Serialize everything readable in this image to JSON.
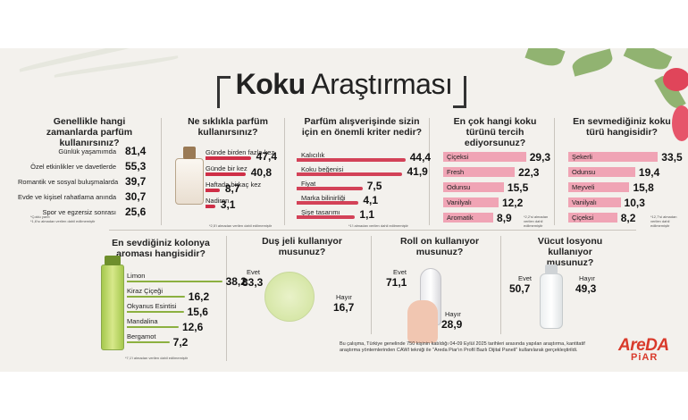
{
  "title_bold": "Koku",
  "title_light": "Araştırması",
  "q1": {
    "question": "Genellikle hangi zamanlarda parfüm kullanırsınız?",
    "note": "*Çoklu yanıt\n*1,6'sı almadan verilen dahil edilmemiştir",
    "items": [
      {
        "label": "Günlük yaşamımda",
        "value": "81,4"
      },
      {
        "label": "Özel etkinlikler ve davetlerde",
        "value": "55,3"
      },
      {
        "label": "Romantik ve sosyal buluşmalarda",
        "value": "39,7"
      },
      {
        "label": "Evde ve kişisel rahatlama anında",
        "value": "30,7"
      },
      {
        "label": "Spor ve egzersiz sonrası",
        "value": "25,6"
      }
    ]
  },
  "q2": {
    "question": "Ne sıklıkla parfüm kullanırsınız?",
    "note": "*2,5'i almadan verilen dahil edilmemiştir",
    "items": [
      {
        "label": "Günde birden fazla kez",
        "value": "47,4"
      },
      {
        "label": "Günde bir kez",
        "value": "40,8"
      },
      {
        "label": "Haftada birkaç kez",
        "value": "8,7"
      },
      {
        "label": "Nadiren",
        "value": "3,1"
      }
    ]
  },
  "q3": {
    "question": "Parfüm alışverişinde sizin için en önemli kriter nedir?",
    "note": "*1'i almadan verilen dahil edilmemiştir",
    "items": [
      {
        "label": "Kalıcılık",
        "value": "44,4"
      },
      {
        "label": "Koku beğenisi",
        "value": "41,9"
      },
      {
        "label": "Fiyat",
        "value": "7,5"
      },
      {
        "label": "Marka bilinirliği",
        "value": "4,1"
      },
      {
        "label": "Şişe tasarımı",
        "value": "1,1"
      }
    ]
  },
  "q4": {
    "question": "En çok hangi koku türünü tercih ediyorsunuz?",
    "note": "*2,2'si almadan verilen dahil edilmemiştir",
    "items": [
      {
        "label": "Çiçeksi",
        "value": "29,3"
      },
      {
        "label": "Fresh",
        "value": "22,3"
      },
      {
        "label": "Odunsu",
        "value": "15,5"
      },
      {
        "label": "Vanilyalı",
        "value": "12,2"
      },
      {
        "label": "Aromatik",
        "value": "8,9"
      }
    ]
  },
  "q5": {
    "question": "En sevmediğiniz koku türü hangisidir?",
    "note": "*12,7'si almadan verilen dahil edilmemiştir",
    "items": [
      {
        "label": "Şekerli",
        "value": "33,5"
      },
      {
        "label": "Odunsu",
        "value": "19,4"
      },
      {
        "label": "Meyveli",
        "value": "15,8"
      },
      {
        "label": "Vanilyalı",
        "value": "10,3"
      },
      {
        "label": "Çiçeksi",
        "value": "8,2"
      }
    ]
  },
  "q6": {
    "question": "En sevdiğiniz kolonya aroması hangisidir?",
    "note": "*7,1'i almadan verilen dahil edilmemiştir",
    "items": [
      {
        "label": "Limon",
        "value": "38,2"
      },
      {
        "label": "Kiraz Çiçeği",
        "value": "16,2"
      },
      {
        "label": "Okyanus Esintisi",
        "value": "15,6"
      },
      {
        "label": "Mandalina",
        "value": "12,6"
      },
      {
        "label": "Bergamot",
        "value": "7,2"
      }
    ]
  },
  "q7": {
    "question": "Duş jeli kullanıyor musunuz?",
    "yes_label": "Evet",
    "yes_value": "83,3",
    "no_label": "Hayır",
    "no_value": "16,7"
  },
  "q8": {
    "question": "Roll on kullanıyor musunuz?",
    "yes_label": "Evet",
    "yes_value": "71,1",
    "no_label": "Hayır",
    "no_value": "28,9"
  },
  "q9": {
    "question": "Vücut losyonu kullanıyor musunuz?",
    "yes_label": "Evet",
    "yes_value": "50,7",
    "no_label": "Hayır",
    "no_value": "49,3"
  },
  "footer": "Bu çalışma, Türkiye genelinde 750 kişinin katıldığı 04-09 Eylül 2025 tarihleri arasında yapılan araştırma, kantitatif araştırma yöntemlerinden CAWI tekniği ile \"Areda Piar'ın Profil Bazlı Dijital Paneli\" kullanılarak gerçekleştirildi.",
  "logo_top": "AreDA",
  "logo_bottom": "PiAR",
  "colors": {
    "red": "#cf2f47",
    "pink": "#f0a4b5",
    "green": "#8cb040",
    "background": "#f3f1ed"
  },
  "chart_data": [
    {
      "type": "bar",
      "title": "Genellikle hangi zamanlarda parfüm kullanırsınız?",
      "categories": [
        "Günlük yaşamımda",
        "Özel etkinlikler ve davetlerde",
        "Romantik ve sosyal buluşmalarda",
        "Evde ve kişisel rahatlama anında",
        "Spor ve egzersiz sonrası"
      ],
      "values": [
        81.4,
        55.3,
        39.7,
        30.7,
        25.6
      ]
    },
    {
      "type": "bar",
      "title": "Ne sıklıkla parfüm kullanırsınız?",
      "categories": [
        "Günde birden fazla kez",
        "Günde bir kez",
        "Haftada birkaç kez",
        "Nadiren"
      ],
      "values": [
        47.4,
        40.8,
        8.7,
        3.1
      ]
    },
    {
      "type": "bar",
      "title": "Parfüm alışverişinde sizin için en önemli kriter nedir?",
      "categories": [
        "Kalıcılık",
        "Koku beğenisi",
        "Fiyat",
        "Marka bilinirliği",
        "Şişe tasarımı"
      ],
      "values": [
        44.4,
        41.9,
        7.5,
        4.1,
        1.1
      ]
    },
    {
      "type": "bar",
      "title": "En çok hangi koku türünü tercih ediyorsunuz?",
      "categories": [
        "Çiçeksi",
        "Fresh",
        "Odunsu",
        "Vanilyalı",
        "Aromatik"
      ],
      "values": [
        29.3,
        22.3,
        15.5,
        12.2,
        8.9
      ]
    },
    {
      "type": "bar",
      "title": "En sevmediğiniz koku türü hangisidir?",
      "categories": [
        "Şekerli",
        "Odunsu",
        "Meyveli",
        "Vanilyalı",
        "Çiçeksi"
      ],
      "values": [
        33.5,
        19.4,
        15.8,
        10.3,
        8.2
      ]
    },
    {
      "type": "bar",
      "title": "En sevdiğiniz kolonya aroması hangisidir?",
      "categories": [
        "Limon",
        "Kiraz Çiçeği",
        "Okyanus Esintisi",
        "Mandalina",
        "Bergamot"
      ],
      "values": [
        38.2,
        16.2,
        15.6,
        12.6,
        7.2
      ]
    },
    {
      "type": "pie",
      "title": "Duş jeli kullanıyor musunuz?",
      "categories": [
        "Evet",
        "Hayır"
      ],
      "values": [
        83.3,
        16.7
      ]
    },
    {
      "type": "pie",
      "title": "Roll on kullanıyor musunuz?",
      "categories": [
        "Evet",
        "Hayır"
      ],
      "values": [
        71.1,
        28.9
      ]
    },
    {
      "type": "pie",
      "title": "Vücut losyonu kullanıyor musunuz?",
      "categories": [
        "Evet",
        "Hayır"
      ],
      "values": [
        50.7,
        49.3
      ]
    }
  ]
}
